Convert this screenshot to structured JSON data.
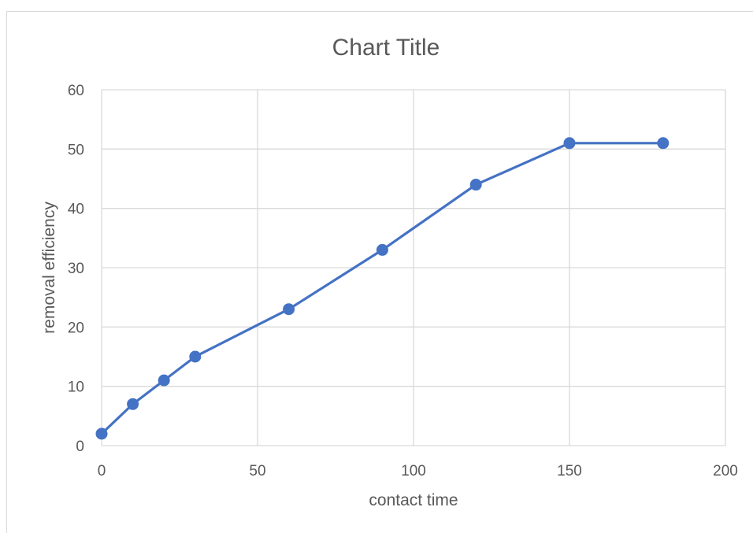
{
  "chart_data": {
    "type": "scatter",
    "title": "Chart Title",
    "xlabel": "contact time",
    "ylabel": "removal efficiency",
    "xlim": [
      0,
      200
    ],
    "ylim": [
      0,
      60
    ],
    "x_ticks": [
      0,
      50,
      100,
      150,
      200
    ],
    "y_ticks": [
      0,
      10,
      20,
      30,
      40,
      50,
      60
    ],
    "grid": true,
    "legend": "none",
    "series": [
      {
        "x": [
          0,
          10,
          20,
          30,
          60,
          90,
          120,
          150,
          180
        ],
        "y": [
          2,
          7,
          11,
          15,
          23,
          33,
          44,
          51,
          51
        ],
        "color": "#4472c4",
        "style": "lines-and-markers"
      }
    ],
    "colors": {
      "series": "#4472c4",
      "grid": "#d9d9d9",
      "text": "#595959"
    }
  }
}
